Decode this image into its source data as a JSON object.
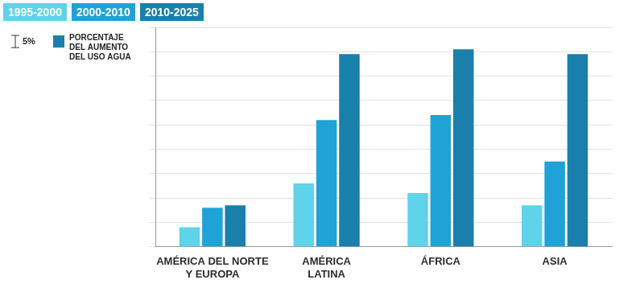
{
  "chart_data": {
    "type": "bar",
    "title": [
      "PORCENTAJE",
      "DEL AUMENTO",
      "DEL USO AGUA"
    ],
    "scale_key": {
      "value": 5,
      "label": "5%"
    },
    "categories": [
      [
        "AMÉRICA DEL NORTE",
        "Y EUROPA"
      ],
      [
        "AMÉRICA",
        "LATINA"
      ],
      "ÁFRICA",
      "ASIA"
    ],
    "series": [
      {
        "name": "1995-2000",
        "color": "#5fd3ea",
        "values": [
          8,
          26,
          22,
          17
        ]
      },
      {
        "name": "2000-2010",
        "color": "#1fa3d6",
        "values": [
          16,
          52,
          54,
          35
        ]
      },
      {
        "name": "2010-2025",
        "color": "#1a7fab",
        "values": [
          17,
          79,
          81,
          79
        ]
      }
    ],
    "ylim": [
      0,
      90
    ],
    "yticks": [
      0,
      10,
      20,
      30,
      40,
      50,
      60,
      70,
      80,
      90
    ],
    "grid": true,
    "tick_labels": "x",
    "legend": "top-left"
  }
}
